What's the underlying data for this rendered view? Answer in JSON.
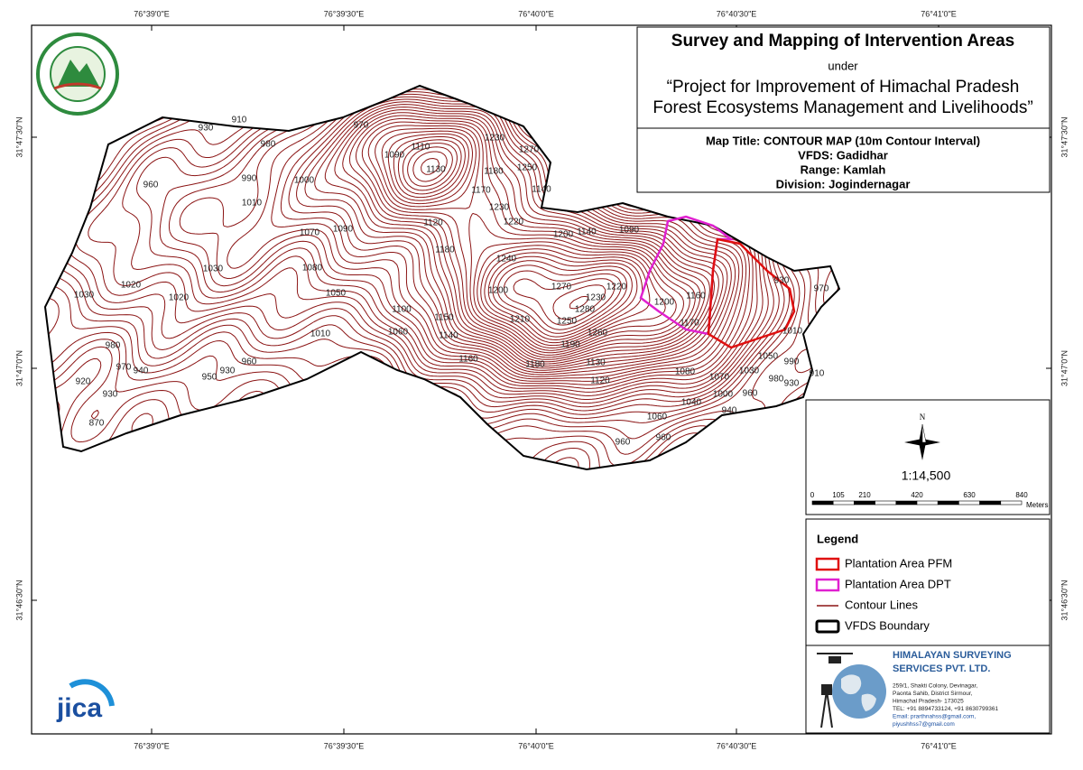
{
  "header": {
    "title": "Survey and Mapping of Intervention Areas",
    "under": "under",
    "project": [
      "“Project for Improvement of Himachal Pradesh",
      "Forest Ecosystems Management and Livelihoods”"
    ]
  },
  "map_info": {
    "map_title": "Map Title: CONTOUR MAP (10m Contour Interval)",
    "vfds": "VFDS: Gadidhar",
    "range": "Range: Kamlah",
    "division": "Division: Jogindernagar"
  },
  "graticule": {
    "longitudes": [
      "76°39'0\"E",
      "76°39'30\"E",
      "76°40'0\"E",
      "76°40'30\"E",
      "76°41'0\"E"
    ],
    "latitudes": [
      "31°47'30\"N",
      "31°47'0\"N",
      "31°46'30\"N"
    ]
  },
  "scale": {
    "north": "N",
    "ratio": "1:14,500",
    "ticks": [
      "0",
      "105",
      "210",
      "420",
      "630",
      "840"
    ],
    "unit": "Meters"
  },
  "legend": {
    "title": "Legend",
    "items": [
      "Plantation Area PFM",
      "Plantation Area DPT",
      "Contour Lines",
      "VFDS Boundary"
    ]
  },
  "company": {
    "name": [
      "HIMALAYAN SURVEYING",
      "SERVICES PVT. LTD."
    ],
    "address": [
      "259/1, Shakti Colony, Devinagar,",
      "Paonta Sahib, District Sirmour,",
      "Himachal Pradesh- 173025",
      "TEL: +91 8894733124, +91 8630799361",
      "Email: prarthnahss@gmail.com,",
      "piyushhss7@gmail.com"
    ]
  },
  "logos": {
    "jica": "jica"
  },
  "contour_labels": [
    "930",
    "910",
    "970",
    "980",
    "960",
    "990",
    "1000",
    "1010",
    "1070",
    "1090",
    "1030",
    "1080",
    "1020",
    "1030",
    "1050",
    "1020",
    "1010",
    "980",
    "970",
    "940",
    "950",
    "930",
    "960",
    "920",
    "930",
    "870",
    "1090",
    "1110",
    "1130",
    "1230",
    "1270",
    "1250",
    "1180",
    "1170",
    "1140",
    "1230",
    "1220",
    "1120",
    "1180",
    "1240",
    "1200",
    "1100",
    "1150",
    "1060",
    "1140",
    "1210",
    "1160",
    "1200",
    "1140",
    "1090",
    "1270",
    "1230",
    "1220",
    "1280",
    "1250",
    "1260",
    "1190",
    "1180",
    "1130",
    "1120",
    "1200",
    "1160",
    "1170",
    "930",
    "970",
    "1010",
    "1080",
    "1070",
    "1030",
    "1050",
    "1040",
    "1000",
    "960",
    "980",
    "990",
    "940",
    "930",
    "910",
    "1060",
    "960",
    "960"
  ]
}
